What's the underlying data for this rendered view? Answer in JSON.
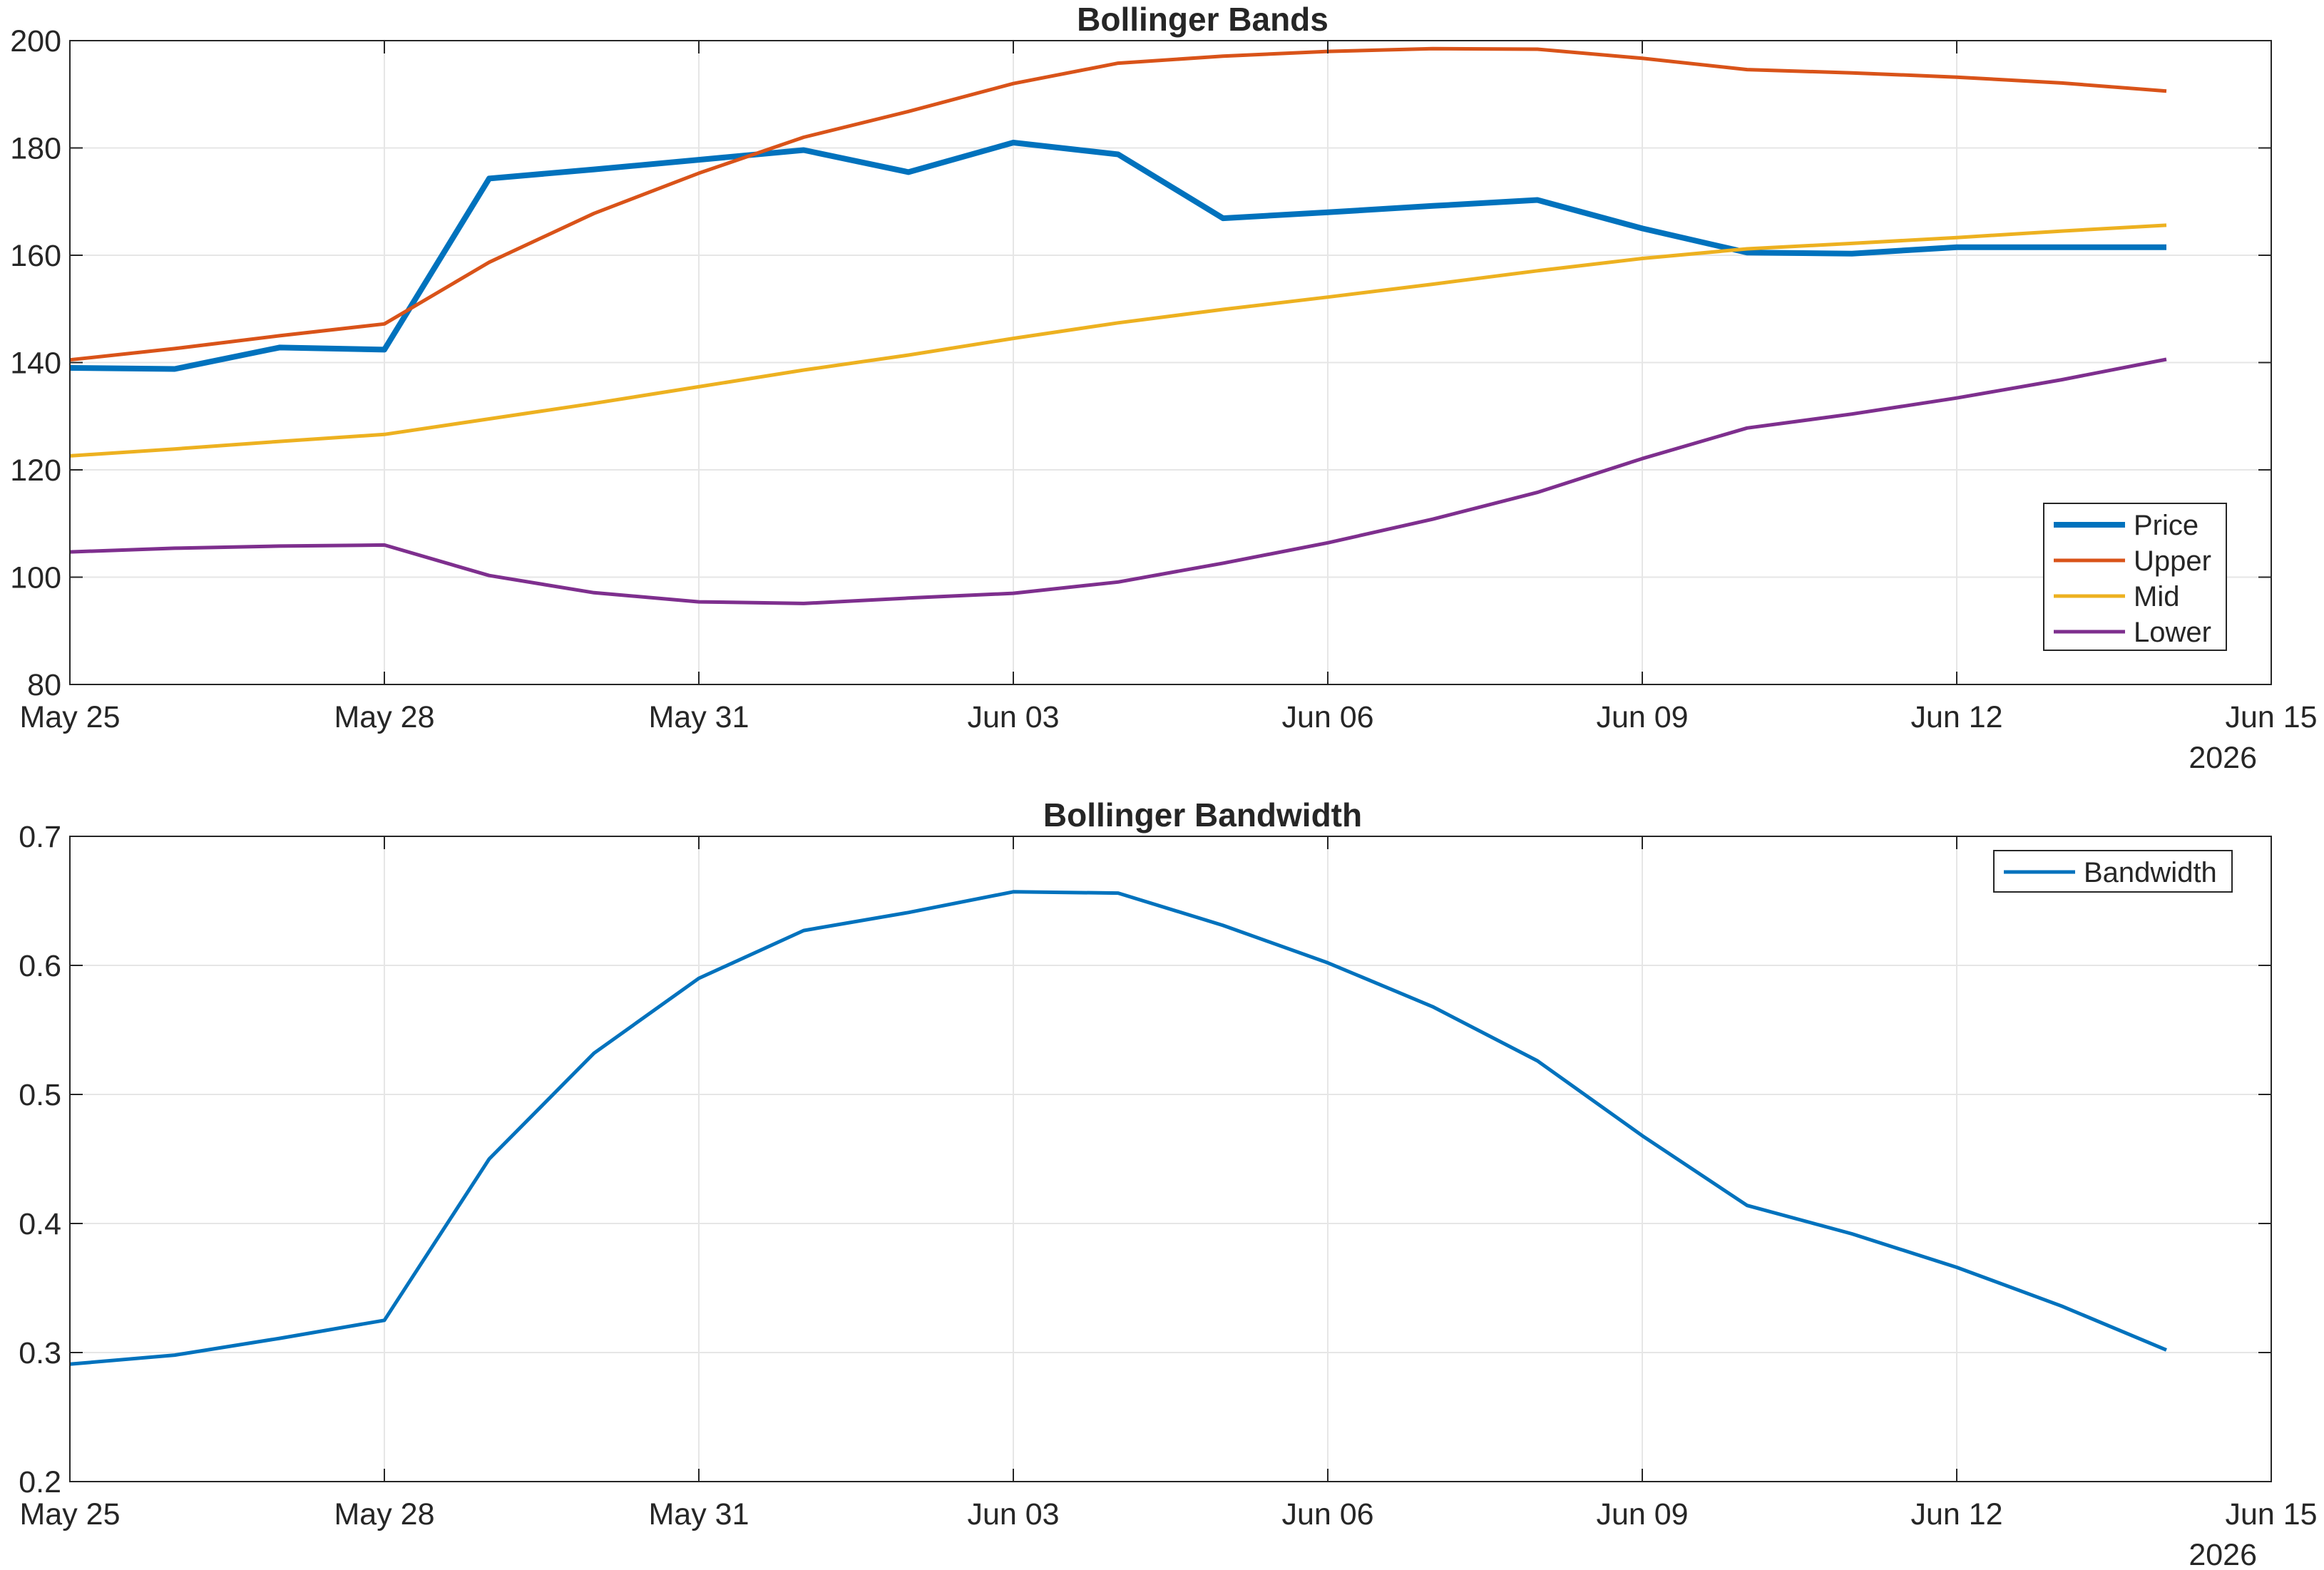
{
  "chart_data": [
    {
      "type": "line",
      "title": "Bollinger Bands",
      "xlabel": "",
      "ylabel": "",
      "x_type": "date",
      "x": [
        "2026-05-25",
        "2026-05-26",
        "2026-05-27",
        "2026-05-28",
        "2026-05-29",
        "2026-05-30",
        "2026-05-31",
        "2026-06-01",
        "2026-06-02",
        "2026-06-03",
        "2026-06-04",
        "2026-06-05",
        "2026-06-06",
        "2026-06-07",
        "2026-06-08",
        "2026-06-09",
        "2026-06-10",
        "2026-06-11",
        "2026-06-12",
        "2026-06-13",
        "2026-06-14"
      ],
      "xlim": [
        "2026-05-25",
        "2026-06-15"
      ],
      "xticks": [
        "2026-05-25",
        "2026-05-28",
        "2026-05-31",
        "2026-06-03",
        "2026-06-06",
        "2026-06-09",
        "2026-06-12",
        "2026-06-15"
      ],
      "xtick_labels": [
        "May 25",
        "May 28",
        "May 31",
        "Jun 03",
        "Jun 06",
        "Jun 09",
        "Jun 12",
        "Jun 15"
      ],
      "x_secondary_label": "2026",
      "ylim": [
        80,
        200
      ],
      "yticks": [
        80,
        100,
        120,
        140,
        160,
        180,
        200
      ],
      "ytick_labels": [
        "80",
        "100",
        "120",
        "140",
        "160",
        "180",
        "200"
      ],
      "grid": true,
      "legend_position": "bottom-right",
      "series": [
        {
          "name": "Price",
          "color": "#0072BD",
          "width": "thick",
          "values": [
            139.0,
            138.8,
            142.8,
            142.4,
            174.3,
            176.0,
            177.8,
            179.6,
            175.5,
            181.0,
            178.8,
            166.9,
            168.0,
            169.2,
            170.3,
            165.0,
            160.5,
            160.3,
            161.5,
            161.5,
            161.5
          ]
        },
        {
          "name": "Upper",
          "color": "#D95319",
          "width": "normal",
          "values": [
            140.5,
            142.6,
            145.0,
            147.2,
            158.7,
            167.8,
            175.3,
            182.0,
            186.8,
            192.0,
            195.8,
            197.1,
            198.0,
            198.5,
            198.4,
            196.7,
            194.6,
            194.0,
            193.2,
            192.1,
            190.6
          ]
        },
        {
          "name": "Mid",
          "color": "#EDB120",
          "width": "normal",
          "values": [
            122.6,
            123.9,
            125.3,
            126.6,
            129.5,
            132.4,
            135.5,
            138.6,
            141.4,
            144.5,
            147.4,
            149.9,
            152.2,
            154.6,
            157.1,
            159.4,
            161.2,
            162.2,
            163.3,
            164.5,
            165.6
          ]
        },
        {
          "name": "Lower",
          "color": "#7E2F8E",
          "width": "normal",
          "values": [
            104.7,
            105.4,
            105.8,
            106.0,
            100.3,
            97.1,
            95.4,
            95.1,
            96.1,
            97.0,
            99.1,
            102.6,
            106.4,
            110.8,
            115.8,
            122.1,
            127.8,
            130.4,
            133.4,
            136.8,
            140.6
          ]
        }
      ]
    },
    {
      "type": "line",
      "title": "Bollinger Bandwidth",
      "xlabel": "",
      "ylabel": "",
      "x_type": "date",
      "x": [
        "2026-05-25",
        "2026-05-26",
        "2026-05-27",
        "2026-05-28",
        "2026-05-29",
        "2026-05-30",
        "2026-05-31",
        "2026-06-01",
        "2026-06-02",
        "2026-06-03",
        "2026-06-04",
        "2026-06-05",
        "2026-06-06",
        "2026-06-07",
        "2026-06-08",
        "2026-06-09",
        "2026-06-10",
        "2026-06-11",
        "2026-06-12",
        "2026-06-13",
        "2026-06-14"
      ],
      "xlim": [
        "2026-05-25",
        "2026-06-15"
      ],
      "xticks": [
        "2026-05-25",
        "2026-05-28",
        "2026-05-31",
        "2026-06-03",
        "2026-06-06",
        "2026-06-09",
        "2026-06-12",
        "2026-06-15"
      ],
      "xtick_labels": [
        "May 25",
        "May 28",
        "May 31",
        "Jun 03",
        "Jun 06",
        "Jun 09",
        "Jun 12",
        "Jun 15"
      ],
      "x_secondary_label": "2026",
      "ylim": [
        0.2,
        0.7
      ],
      "yticks": [
        0.2,
        0.3,
        0.4,
        0.5,
        0.6,
        0.7
      ],
      "ytick_labels": [
        "0.2",
        "0.3",
        "0.4",
        "0.5",
        "0.6",
        "0.7"
      ],
      "grid": true,
      "legend_position": "top-right",
      "series": [
        {
          "name": "Bandwidth",
          "color": "#0072BD",
          "width": "normal",
          "values": [
            0.291,
            0.298,
            0.311,
            0.325,
            0.45,
            0.532,
            0.59,
            0.627,
            0.641,
            0.657,
            0.656,
            0.631,
            0.602,
            0.568,
            0.526,
            0.468,
            0.414,
            0.392,
            0.366,
            0.336,
            0.302
          ]
        }
      ]
    }
  ]
}
